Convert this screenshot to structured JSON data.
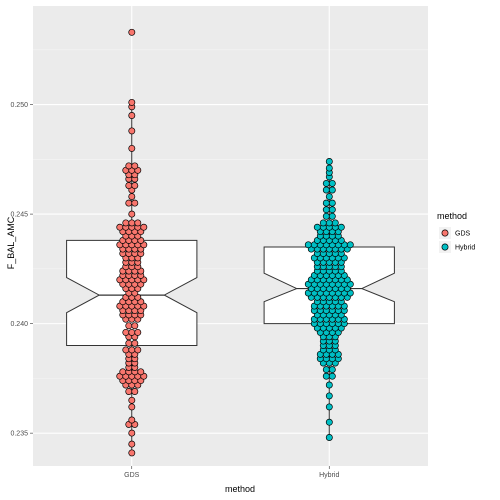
{
  "chart_data": {
    "type": "dotplot-boxplot",
    "title": "",
    "xlabel": "method",
    "ylabel": "F_BAL_AMC",
    "ylim": [
      0.2335,
      0.2545
    ],
    "y_ticks": [
      0.235,
      0.24,
      0.245,
      0.25
    ],
    "y_tick_labels": [
      "0.235",
      "0.240",
      "0.245",
      "0.250"
    ],
    "categories": [
      "GDS",
      "Hybrid"
    ],
    "legend": {
      "title": "method",
      "position": "right",
      "entries": [
        {
          "label": "GDS",
          "color": "#F8766D"
        },
        {
          "label": "Hybrid",
          "color": "#00BFC4"
        }
      ]
    },
    "boxplots": [
      {
        "category": "GDS",
        "lower_hinge": 0.239,
        "median": 0.2413,
        "upper_hinge": 0.2438,
        "notch_low": 0.2405,
        "notch_high": 0.2421,
        "whisker_low": 0.2341,
        "whisker_high": 0.25
      },
      {
        "category": "Hybrid",
        "lower_hinge": 0.24,
        "median": 0.2416,
        "upper_hinge": 0.2435,
        "notch_low": 0.241,
        "notch_high": 0.2423,
        "whisker_low": 0.2348,
        "whisker_high": 0.2474
      }
    ],
    "series": [
      {
        "name": "GDS",
        "color": "#F8766D",
        "category": "GDS",
        "bins": [
          [
            0.2341,
            1
          ],
          [
            0.2345,
            1
          ],
          [
            0.235,
            1
          ],
          [
            0.2354,
            2
          ],
          [
            0.2356,
            1
          ],
          [
            0.2362,
            1
          ],
          [
            0.2365,
            1
          ],
          [
            0.2369,
            2
          ],
          [
            0.2372,
            3
          ],
          [
            0.2374,
            4
          ],
          [
            0.2376,
            5
          ],
          [
            0.2378,
            4
          ],
          [
            0.238,
            2
          ],
          [
            0.2382,
            2
          ],
          [
            0.2384,
            2
          ],
          [
            0.2386,
            2
          ],
          [
            0.2388,
            3
          ],
          [
            0.2391,
            2
          ],
          [
            0.2394,
            2
          ],
          [
            0.2396,
            3
          ],
          [
            0.2399,
            2
          ],
          [
            0.2402,
            3
          ],
          [
            0.2404,
            4
          ],
          [
            0.2406,
            4
          ],
          [
            0.2408,
            5
          ],
          [
            0.241,
            4
          ],
          [
            0.2412,
            3
          ],
          [
            0.2414,
            2
          ],
          [
            0.2416,
            3
          ],
          [
            0.2418,
            4
          ],
          [
            0.242,
            5
          ],
          [
            0.2422,
            4
          ],
          [
            0.2424,
            4
          ],
          [
            0.2426,
            3
          ],
          [
            0.2428,
            3
          ],
          [
            0.243,
            3
          ],
          [
            0.2432,
            4
          ],
          [
            0.2434,
            4
          ],
          [
            0.2436,
            5
          ],
          [
            0.2438,
            4
          ],
          [
            0.244,
            3
          ],
          [
            0.2442,
            4
          ],
          [
            0.2444,
            5
          ],
          [
            0.2446,
            3
          ],
          [
            0.245,
            1
          ],
          [
            0.2455,
            2
          ],
          [
            0.2458,
            1
          ],
          [
            0.2461,
            1
          ],
          [
            0.2463,
            2
          ],
          [
            0.2466,
            2
          ],
          [
            0.2468,
            2
          ],
          [
            0.247,
            3
          ],
          [
            0.2472,
            2
          ],
          [
            0.248,
            1
          ],
          [
            0.2488,
            1
          ],
          [
            0.2495,
            1
          ],
          [
            0.2499,
            1
          ],
          [
            0.2501,
            1
          ],
          [
            0.2533,
            1
          ]
        ]
      },
      {
        "name": "Hybrid",
        "color": "#00BFC4",
        "category": "Hybrid",
        "bins": [
          [
            0.2348,
            1
          ],
          [
            0.2355,
            1
          ],
          [
            0.2362,
            1
          ],
          [
            0.2367,
            1
          ],
          [
            0.2372,
            1
          ],
          [
            0.2376,
            2
          ],
          [
            0.2379,
            2
          ],
          [
            0.2382,
            3
          ],
          [
            0.2384,
            4
          ],
          [
            0.2386,
            4
          ],
          [
            0.2388,
            3
          ],
          [
            0.239,
            3
          ],
          [
            0.2392,
            3
          ],
          [
            0.2394,
            3
          ],
          [
            0.2396,
            4
          ],
          [
            0.2398,
            5
          ],
          [
            0.24,
            6
          ],
          [
            0.2402,
            6
          ],
          [
            0.2404,
            5
          ],
          [
            0.2406,
            6
          ],
          [
            0.2408,
            6
          ],
          [
            0.241,
            5
          ],
          [
            0.2412,
            7
          ],
          [
            0.2414,
            8
          ],
          [
            0.2416,
            7
          ],
          [
            0.2418,
            8
          ],
          [
            0.242,
            7
          ],
          [
            0.2422,
            6
          ],
          [
            0.2424,
            5
          ],
          [
            0.2426,
            5
          ],
          [
            0.2428,
            5
          ],
          [
            0.243,
            6
          ],
          [
            0.2432,
            5
          ],
          [
            0.2434,
            7
          ],
          [
            0.2436,
            8
          ],
          [
            0.2438,
            5
          ],
          [
            0.244,
            4
          ],
          [
            0.2442,
            4
          ],
          [
            0.2444,
            5
          ],
          [
            0.2446,
            3
          ],
          [
            0.2449,
            2
          ],
          [
            0.2452,
            2
          ],
          [
            0.2455,
            2
          ],
          [
            0.2458,
            1
          ],
          [
            0.2461,
            2
          ],
          [
            0.2464,
            2
          ],
          [
            0.2467,
            1
          ],
          [
            0.2469,
            1
          ],
          [
            0.2471,
            1
          ],
          [
            0.2474,
            1
          ]
        ]
      }
    ]
  }
}
